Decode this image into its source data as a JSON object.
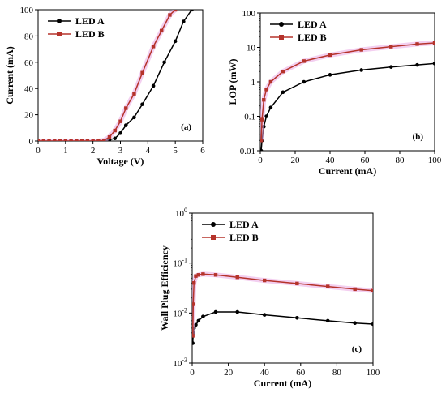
{
  "colors": {
    "led_a": "#000000",
    "led_b": "#b5332b",
    "led_b_glow": "#e9a7e4"
  },
  "chart_data": [
    {
      "type": "line",
      "panel_label": "(a)",
      "xlabel": "Voltage (V)",
      "ylabel": "Current (mA)",
      "xlim": [
        0,
        6
      ],
      "ylim": [
        0,
        100
      ],
      "xticks": [
        "0",
        "1",
        "2",
        "3",
        "4",
        "5",
        "6"
      ],
      "yticks": [
        "0",
        "20",
        "40",
        "60",
        "80",
        "100"
      ],
      "legend_position": "top-left",
      "series": [
        {
          "name": "LED A",
          "color": "#000000",
          "x": [
            0,
            0.2,
            0.4,
            0.6,
            0.8,
            1.0,
            1.2,
            1.4,
            1.6,
            1.8,
            2.0,
            2.2,
            2.4,
            2.6,
            2.8,
            3.0,
            3.2,
            3.5,
            3.8,
            4.2,
            4.6,
            5.0,
            5.3,
            5.6
          ],
          "y": [
            0,
            0,
            0,
            0,
            0,
            0,
            0,
            0,
            0,
            0,
            0,
            0,
            0,
            1,
            2,
            6,
            12,
            18,
            28,
            42,
            60,
            76,
            91,
            100
          ]
        },
        {
          "name": "LED B",
          "color": "#b5332b",
          "x": [
            0,
            0.2,
            0.4,
            0.6,
            0.8,
            1.0,
            1.2,
            1.4,
            1.6,
            1.8,
            2.0,
            2.2,
            2.4,
            2.6,
            2.8,
            3.0,
            3.2,
            3.5,
            3.8,
            4.2,
            4.5,
            4.8,
            5.0
          ],
          "y": [
            0,
            0,
            0,
            0,
            0,
            0,
            0,
            0,
            0,
            0,
            0,
            0,
            0.5,
            3,
            8,
            15,
            25,
            36,
            52,
            72,
            84,
            96,
            100
          ]
        }
      ]
    },
    {
      "type": "line",
      "panel_label": "(b)",
      "xlabel": "Current (mA)",
      "ylabel": "LOP (mW)",
      "xlim": [
        0,
        100
      ],
      "ylim": [
        0.01,
        100
      ],
      "yscale": "log",
      "xticks": [
        "0",
        "20",
        "40",
        "60",
        "80",
        "100"
      ],
      "yticks": [
        "0.01",
        "0.1",
        "1",
        "10",
        "100"
      ],
      "legend_position": "top-left",
      "series": [
        {
          "name": "LED A",
          "color": "#000000",
          "x": [
            0.5,
            1,
            2,
            3.5,
            6,
            13,
            25,
            40,
            58,
            75,
            90,
            100
          ],
          "y": [
            0.01,
            0.02,
            0.05,
            0.1,
            0.18,
            0.5,
            1.0,
            1.6,
            2.2,
            2.7,
            3.1,
            3.4
          ]
        },
        {
          "name": "LED B",
          "color": "#b5332b",
          "x": [
            0.5,
            1,
            2,
            3.5,
            6,
            13,
            25,
            40,
            58,
            75,
            90,
            100
          ],
          "y": [
            0.02,
            0.08,
            0.3,
            0.6,
            1.0,
            2.0,
            4.0,
            6.0,
            8.5,
            10.5,
            12.5,
            13.5
          ]
        }
      ]
    },
    {
      "type": "line",
      "panel_label": "(c)",
      "xlabel": "Current (mA)",
      "ylabel": "Wall Plug Efficiency",
      "xlim": [
        0,
        100
      ],
      "ylim": [
        0.001,
        1
      ],
      "yscale": "log",
      "xticks": [
        "0",
        "20",
        "40",
        "60",
        "80",
        "100"
      ],
      "yticks": [
        {
          "base": "10",
          "exp": "-3"
        },
        {
          "base": "10",
          "exp": "-2"
        },
        {
          "base": "10",
          "exp": "-1"
        },
        {
          "base": "10",
          "exp": "0"
        }
      ],
      "legend_position": "top-left",
      "series": [
        {
          "name": "LED A",
          "color": "#000000",
          "x": [
            0.3,
            0.6,
            1,
            2,
            3.5,
            6,
            13,
            25,
            40,
            58,
            75,
            90,
            100
          ],
          "y": [
            0.0025,
            0.004,
            0.005,
            0.0058,
            0.007,
            0.0085,
            0.0105,
            0.0105,
            0.0092,
            0.008,
            0.007,
            0.0063,
            0.006
          ]
        },
        {
          "name": "LED B",
          "color": "#b5332b",
          "x": [
            0.3,
            0.6,
            1,
            2,
            3.5,
            6,
            13,
            25,
            40,
            58,
            75,
            90,
            100
          ],
          "y": [
            0.0035,
            0.015,
            0.04,
            0.055,
            0.058,
            0.06,
            0.058,
            0.052,
            0.045,
            0.039,
            0.034,
            0.03,
            0.028
          ]
        }
      ]
    }
  ]
}
